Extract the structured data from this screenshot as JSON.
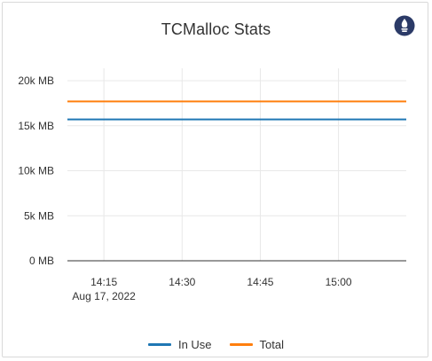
{
  "panel": {
    "title": "TCMalloc Stats",
    "logo_icon": "prometheus-icon"
  },
  "chart_data": {
    "type": "line",
    "title": "TCMalloc Stats",
    "xlabel": "",
    "ylabel": "",
    "x_ticks": [
      "14:15",
      "14:30",
      "14:45",
      "15:00"
    ],
    "x_tick_sublabel": "Aug 17, 2022",
    "x": [
      "14:08",
      "15:13"
    ],
    "xlim": [
      "14:08",
      "15:13"
    ],
    "y_ticks": [
      "0 MB",
      "5k MB",
      "10k MB",
      "15k MB",
      "20k MB"
    ],
    "y_tick_values": [
      0,
      5000,
      10000,
      15000,
      20000
    ],
    "ylim": [
      0,
      20000
    ],
    "grid": true,
    "legend_position": "bottom",
    "series": [
      {
        "name": "In Use",
        "color": "#1f77b4",
        "values": [
          15700,
          15700
        ]
      },
      {
        "name": "Total",
        "color": "#ff7f0e",
        "values": [
          17700,
          17700
        ]
      }
    ]
  }
}
